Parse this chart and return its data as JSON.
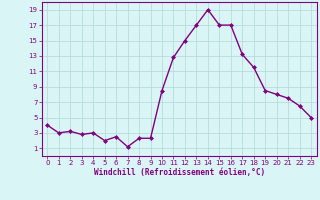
{
  "x": [
    0,
    1,
    2,
    3,
    4,
    5,
    6,
    7,
    8,
    9,
    10,
    11,
    12,
    13,
    14,
    15,
    16,
    17,
    18,
    19,
    20,
    21,
    22,
    23
  ],
  "y": [
    4.0,
    3.0,
    3.2,
    2.8,
    3.0,
    2.0,
    2.5,
    1.2,
    2.3,
    2.3,
    8.5,
    12.8,
    15.0,
    17.0,
    19.0,
    17.0,
    17.0,
    13.2,
    11.5,
    8.5,
    8.0,
    7.5,
    6.5,
    5.0
  ],
  "line_color": "#800080",
  "marker": "D",
  "marker_size": 2.0,
  "bg_color": "#d9f5f5",
  "grid_color": "#b0d8d8",
  "xlabel": "Windchill (Refroidissement éolien,°C)",
  "xlabel_color": "#800080",
  "tick_color": "#800080",
  "spine_color": "#800080",
  "xlim": [
    -0.5,
    23.5
  ],
  "ylim": [
    0,
    20
  ],
  "yticks": [
    1,
    3,
    5,
    7,
    9,
    11,
    13,
    15,
    17,
    19
  ],
  "xticks": [
    0,
    1,
    2,
    3,
    4,
    5,
    6,
    7,
    8,
    9,
    10,
    11,
    12,
    13,
    14,
    15,
    16,
    17,
    18,
    19,
    20,
    21,
    22,
    23
  ],
  "line_width": 1.0,
  "tick_fontsize": 5.0,
  "xlabel_fontsize": 5.5
}
